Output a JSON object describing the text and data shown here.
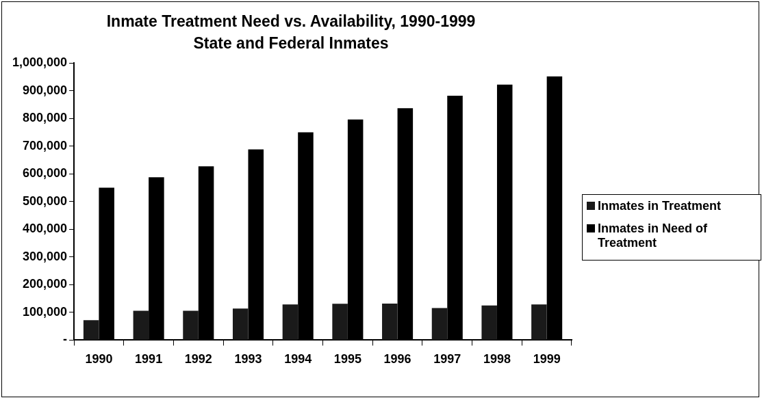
{
  "chart_data": {
    "type": "bar",
    "title": "Inmate Treatment Need vs. Availability, 1990-1999",
    "subtitle": "State and Federal Inmates",
    "categories": [
      "1990",
      "1991",
      "1992",
      "1993",
      "1994",
      "1995",
      "1996",
      "1997",
      "1998",
      "1999"
    ],
    "series": [
      {
        "name": "Inmates in Treatment",
        "color": "#1a1a1a",
        "values": [
          72000,
          106000,
          106000,
          114000,
          129000,
          131000,
          132000,
          116000,
          125000,
          129000
        ]
      },
      {
        "name": "Inmates in Need of Treatment",
        "color": "#000000",
        "values": [
          550000,
          588000,
          627000,
          688000,
          750000,
          796000,
          837000,
          882000,
          922000,
          952000
        ]
      }
    ],
    "ylim": [
      0,
      1000000
    ],
    "yticks": [
      {
        "value": 0,
        "label": "-"
      },
      {
        "value": 100000,
        "label": "100,000"
      },
      {
        "value": 200000,
        "label": "200,000"
      },
      {
        "value": 300000,
        "label": "300,000"
      },
      {
        "value": 400000,
        "label": "400,000"
      },
      {
        "value": 500000,
        "label": "500,000"
      },
      {
        "value": 600000,
        "label": "600,000"
      },
      {
        "value": 700000,
        "label": "700,000"
      },
      {
        "value": 800000,
        "label": "800,000"
      },
      {
        "value": 900000,
        "label": "900,000"
      },
      {
        "value": 1000000,
        "label": "1,000,000"
      }
    ],
    "grid": false,
    "legend": "right"
  }
}
